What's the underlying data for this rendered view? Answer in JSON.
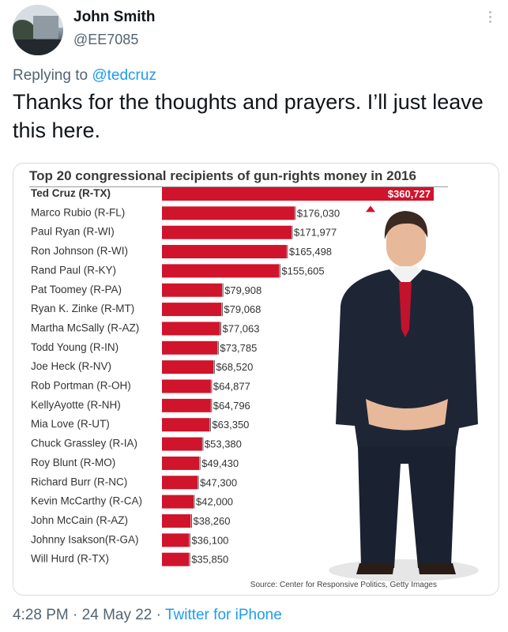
{
  "tweet": {
    "author_name": "John Smith",
    "author_handle": "@EE7085",
    "replying_prefix": "Replying to",
    "replying_to": "@tedcruz",
    "text": "Thanks for the thoughts and prayers. I’ll just leave this here."
  },
  "footer": {
    "time": "4:28 PM",
    "date": "24 May 22",
    "separator": "·",
    "source": "Twitter for iPhone"
  },
  "image_text": {
    "source_note": "Source: Center for Responsive Politics, Getty Images"
  },
  "chart_data": {
    "type": "bar",
    "orientation": "horizontal",
    "title": "Top 20 congressional recipients of gun-rights money in 2016",
    "categories": [
      "Ted Cruz (R-TX)",
      "Marco Rubio (R-FL)",
      "Paul Ryan (R-WI)",
      "Ron Johnson (R-WI)",
      "Rand Paul (R-KY)",
      "Pat Toomey (R-PA)",
      "Ryan K. Zinke (R-MT)",
      "Martha McSally (R-AZ)",
      "Todd Young (R-IN)",
      "Joe Heck (R-NV)",
      "Rob Portman (R-OH)",
      "KellyAyotte (R-NH)",
      "Mia Love (R-UT)",
      "Chuck Grassley (R-IA)",
      "Roy Blunt (R-MO)",
      "Richard Burr (R-NC)",
      "Kevin McCarthy (R-CA)",
      "John McCain (R-AZ)",
      "Johnny Isakson(R-GA)",
      "Will Hurd (R-TX)"
    ],
    "values": [
      360727,
      176030,
      171977,
      165498,
      155605,
      79908,
      79068,
      77063,
      73785,
      68520,
      64877,
      64796,
      63350,
      53380,
      49430,
      47300,
      42000,
      38260,
      36100,
      35850
    ],
    "value_labels": [
      "$360,727",
      "$176,030",
      "$171,977",
      "$165,498",
      "$155,605",
      "$79,908",
      "$79,068",
      "$77,063",
      "$73,785",
      "$68,520",
      "$64,877",
      "$64,796",
      "$63,350",
      "$53,380",
      "$49,430",
      "$47,300",
      "$42,000",
      "$38,260",
      "$36,100",
      "$35,850"
    ],
    "highlight_first_label_bold": true,
    "xlim": [
      0,
      360727
    ],
    "bar_color": "#d0142c",
    "marker_color": "#d0142c"
  },
  "colors": {
    "link": "#1d9bf0",
    "secondary_text": "#536471",
    "primary_text": "#0f1419"
  },
  "icons": {
    "more": "vertical-ellipsis-icon"
  }
}
